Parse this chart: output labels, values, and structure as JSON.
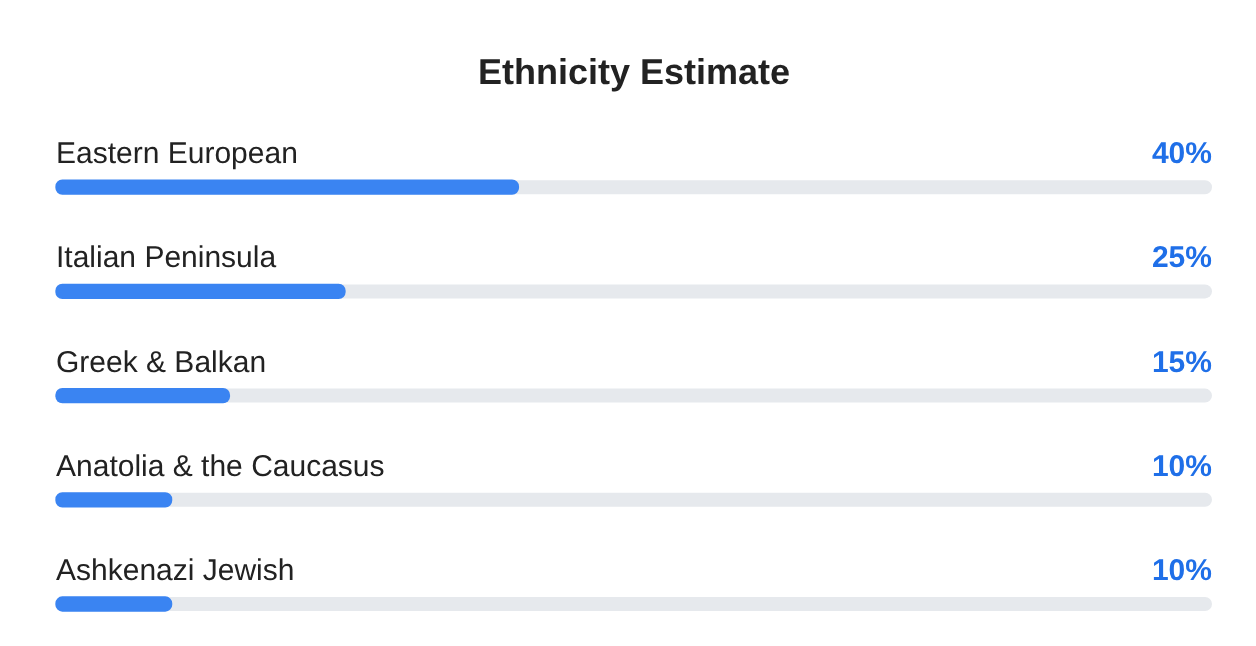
{
  "chart_data": {
    "type": "bar",
    "orientation": "horizontal",
    "title": "Ethnicity Estimate",
    "categories": [
      "Eastern European",
      "Italian Peninsula",
      "Greek & Balkan",
      "Anatolia & the Caucasus",
      "Ashkenazi Jewish"
    ],
    "values": [
      40,
      25,
      15,
      10,
      10
    ],
    "value_labels": [
      "40%",
      "25%",
      "15%",
      "10%",
      "10%"
    ],
    "color": "#3a84f2",
    "xlim": [
      0,
      100
    ],
    "tick_labels": "y",
    "legend": false
  }
}
